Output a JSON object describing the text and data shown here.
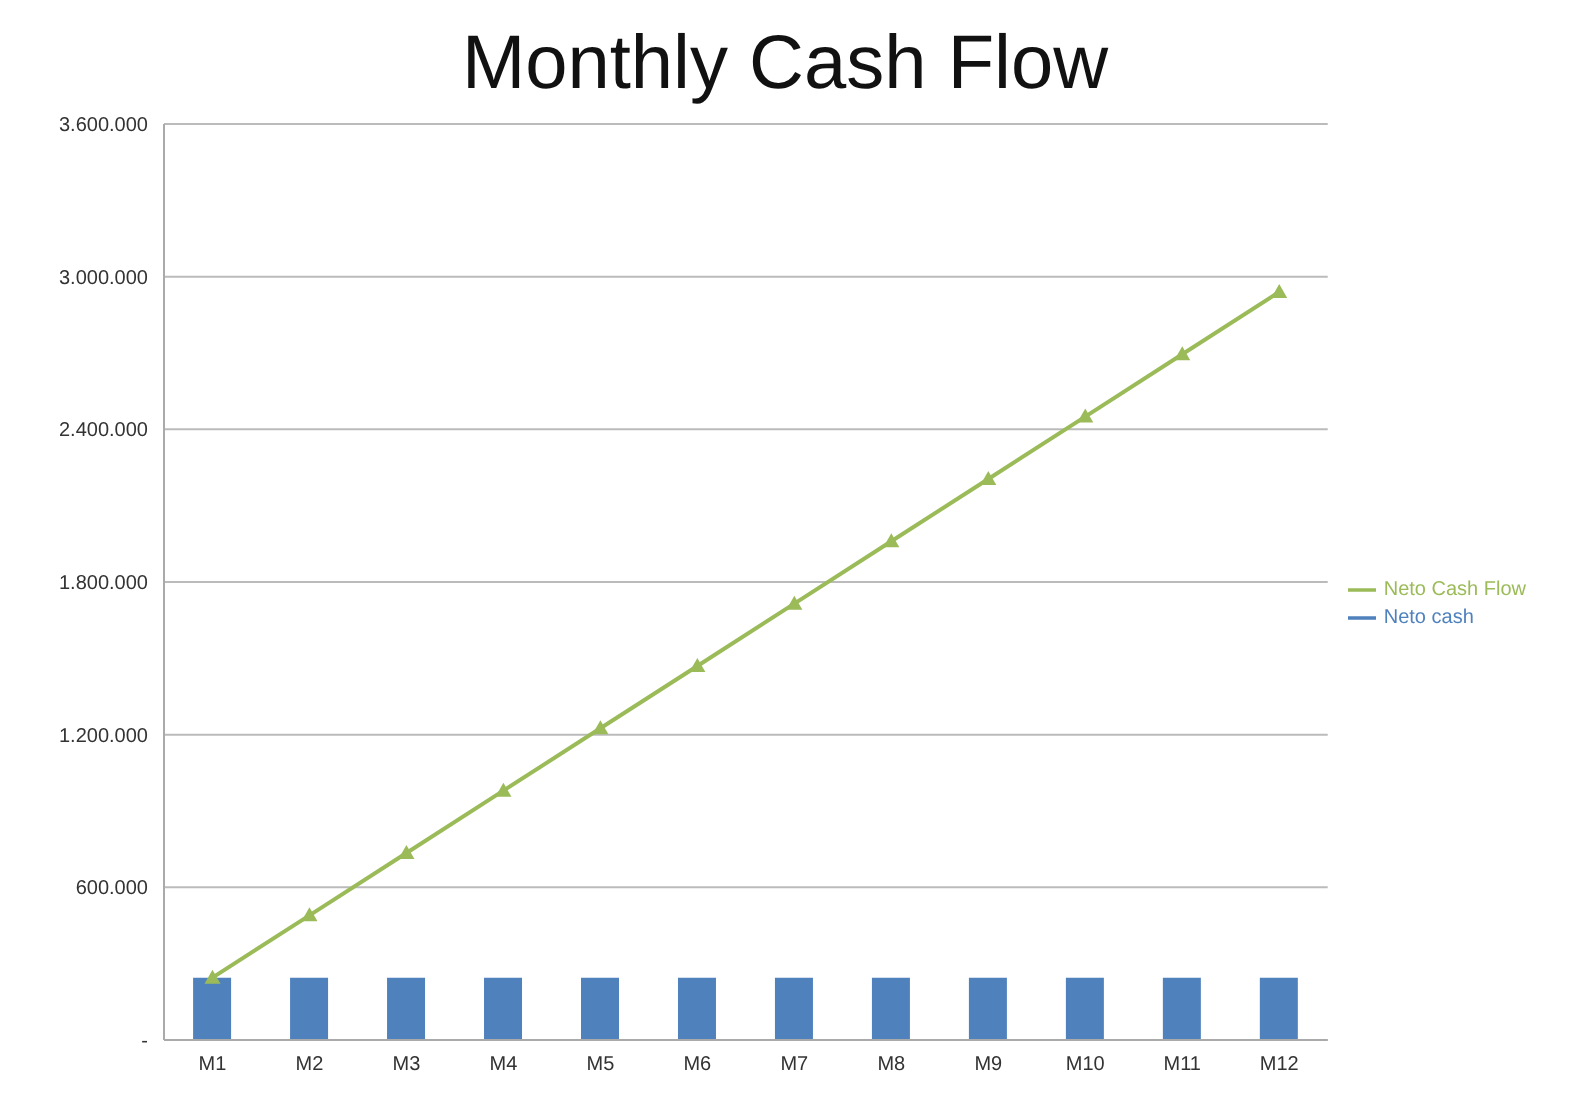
{
  "chart_data": {
    "type": "bar",
    "title": "Monthly Cash Flow",
    "categories": [
      "M1",
      "M2",
      "M3",
      "M4",
      "M5",
      "M6",
      "M7",
      "M8",
      "M9",
      "M10",
      "M11",
      "M12"
    ],
    "series": [
      {
        "name": "Neto cash",
        "color": "#4f81bd",
        "values": [
          245000,
          245000,
          245000,
          245000,
          245000,
          245000,
          245000,
          245000,
          245000,
          245000,
          245000,
          245000
        ]
      },
      {
        "name": "Neto Cash Flow",
        "type": "line",
        "color": "#9bbb59",
        "marker": "triangle",
        "values": [
          245000,
          490000,
          735000,
          980000,
          1225000,
          1470000,
          1715000,
          1960000,
          2205000,
          2450000,
          2695000,
          2940000
        ]
      }
    ],
    "ylim": [
      0,
      3600000
    ],
    "yticks": [
      {
        "value": 0,
        "label": "-"
      },
      {
        "value": 600000,
        "label": "600.000"
      },
      {
        "value": 1200000,
        "label": "1.200.000"
      },
      {
        "value": 1800000,
        "label": "1.800.000"
      },
      {
        "value": 2400000,
        "label": "2.400.000"
      },
      {
        "value": 3000000,
        "label": "3.000.000"
      },
      {
        "value": 3600000,
        "label": "3.600.000"
      }
    ],
    "grid": "y",
    "legend": "right"
  }
}
